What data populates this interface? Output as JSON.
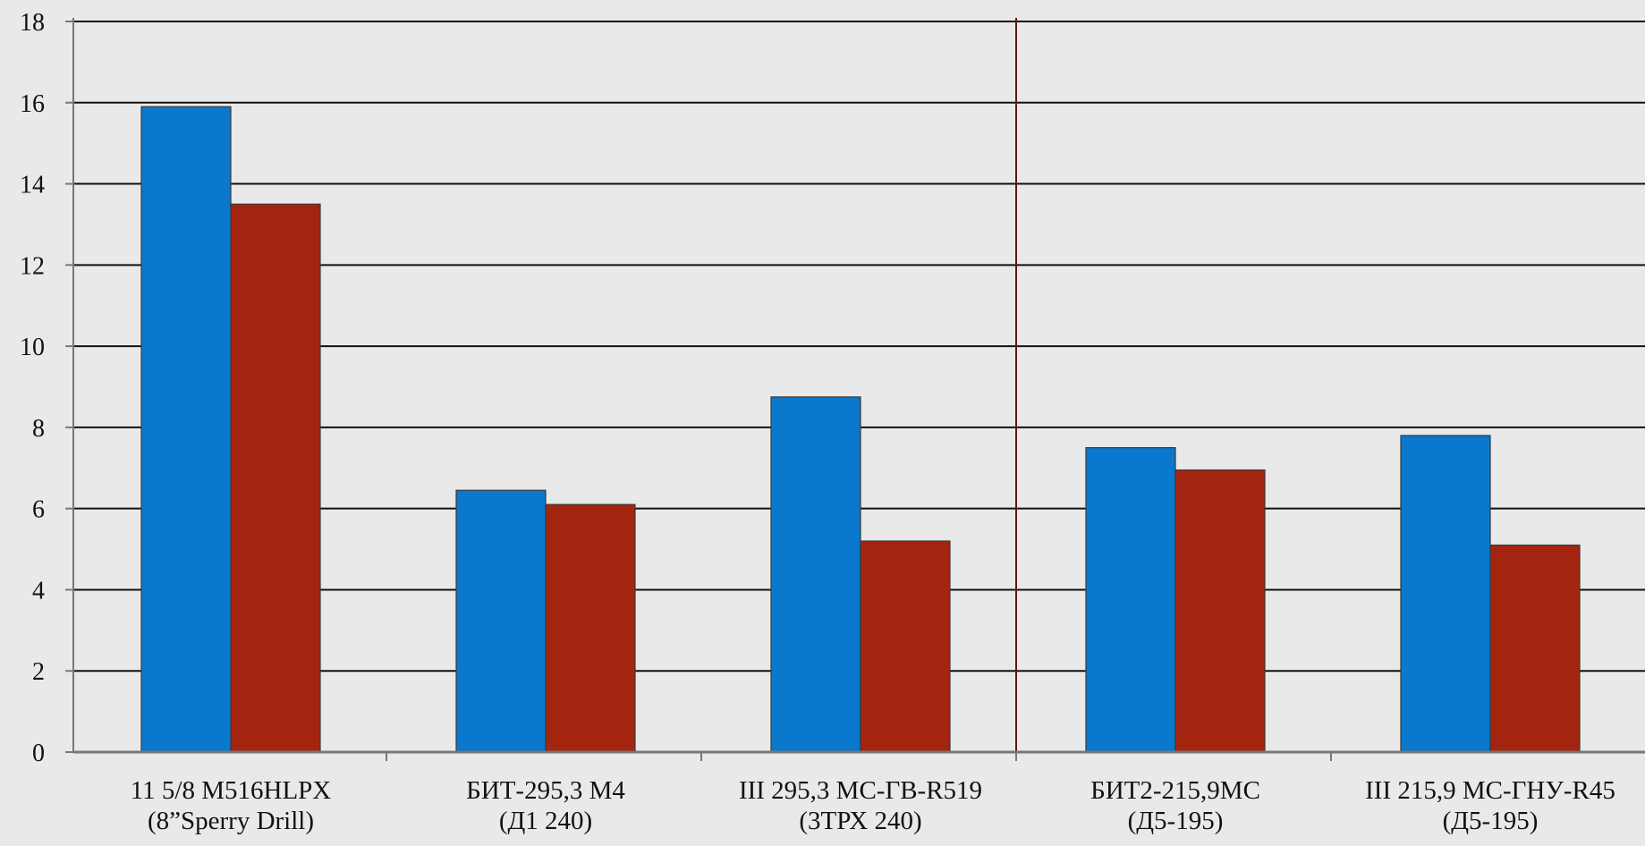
{
  "chart_data": {
    "type": "bar",
    "title": "",
    "xlabel": "",
    "ylabel": "",
    "ylim": [
      0,
      18
    ],
    "yticks": [
      0,
      2,
      4,
      6,
      8,
      10,
      12,
      14,
      16,
      18
    ],
    "grid": true,
    "legend": "none",
    "categories": [
      [
        "11 5/8 M516HLPX",
        "(8”Sperry Drill)"
      ],
      [
        "БИТ-295,3 М4",
        "(Д1 240)"
      ],
      [
        "III 295,3 МС-ГВ-R519",
        "(3ТРХ 240)"
      ],
      [
        "БИТ2-215,9МС",
        "(Д5-195)"
      ],
      [
        "III 215,9 МС-ГНУ-R45",
        "(Д5-195)"
      ]
    ],
    "series": [
      {
        "values": [
          15.9,
          6.45,
          8.75,
          7.5,
          7.8
        ],
        "color": "#0a78cc"
      },
      {
        "values": [
          13.5,
          6.1,
          5.2,
          6.95,
          5.1
        ],
        "color": "#a32510"
      }
    ],
    "separator_after_category": 2,
    "separator_color": "#5a1a10"
  }
}
